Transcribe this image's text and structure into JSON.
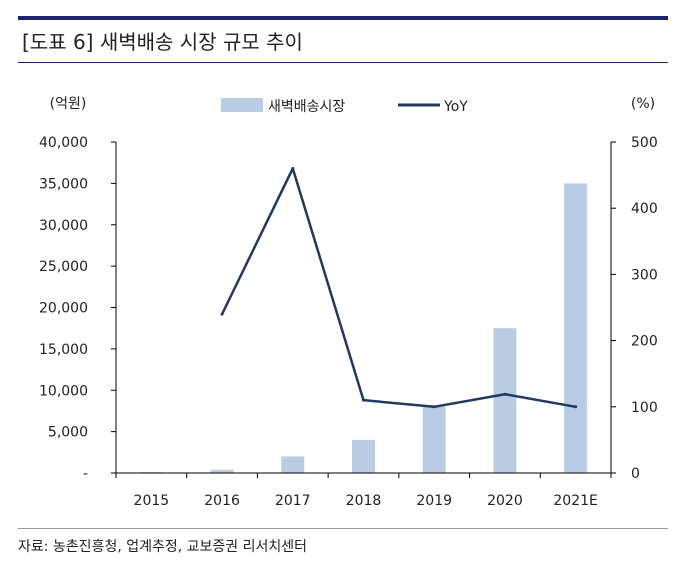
{
  "title": "[도표 6] 새벽배송 시장 규모 추이",
  "source": "자료: 농촌진흥청, 업계추정, 교보증권 리서치센터",
  "chart_data": {
    "type": "bar",
    "categories": [
      "2015",
      "2016",
      "2017",
      "2018",
      "2019",
      "2020",
      "2021E"
    ],
    "series": [
      {
        "name": "새벽배송시장",
        "type": "bar",
        "axis": "left",
        "color": "#b8cce4",
        "values": [
          100,
          400,
          2000,
          4000,
          8000,
          17500,
          35000
        ]
      },
      {
        "name": "YoY",
        "type": "line",
        "axis": "right",
        "color": "#1f3864",
        "values": [
          null,
          240,
          460,
          110,
          100,
          119,
          100
        ]
      }
    ],
    "y_left": {
      "unit": "(억원)",
      "min": 0,
      "max": 40000,
      "ticks": [
        "-",
        "5,000",
        "10,000",
        "15,000",
        "20,000",
        "25,000",
        "30,000",
        "35,000",
        "40,000"
      ]
    },
    "y_right": {
      "unit": "(%)",
      "min": 0,
      "max": 500,
      "ticks": [
        "0",
        "100",
        "200",
        "300",
        "400",
        "500"
      ]
    },
    "legend": "top-center",
    "grid": false
  }
}
